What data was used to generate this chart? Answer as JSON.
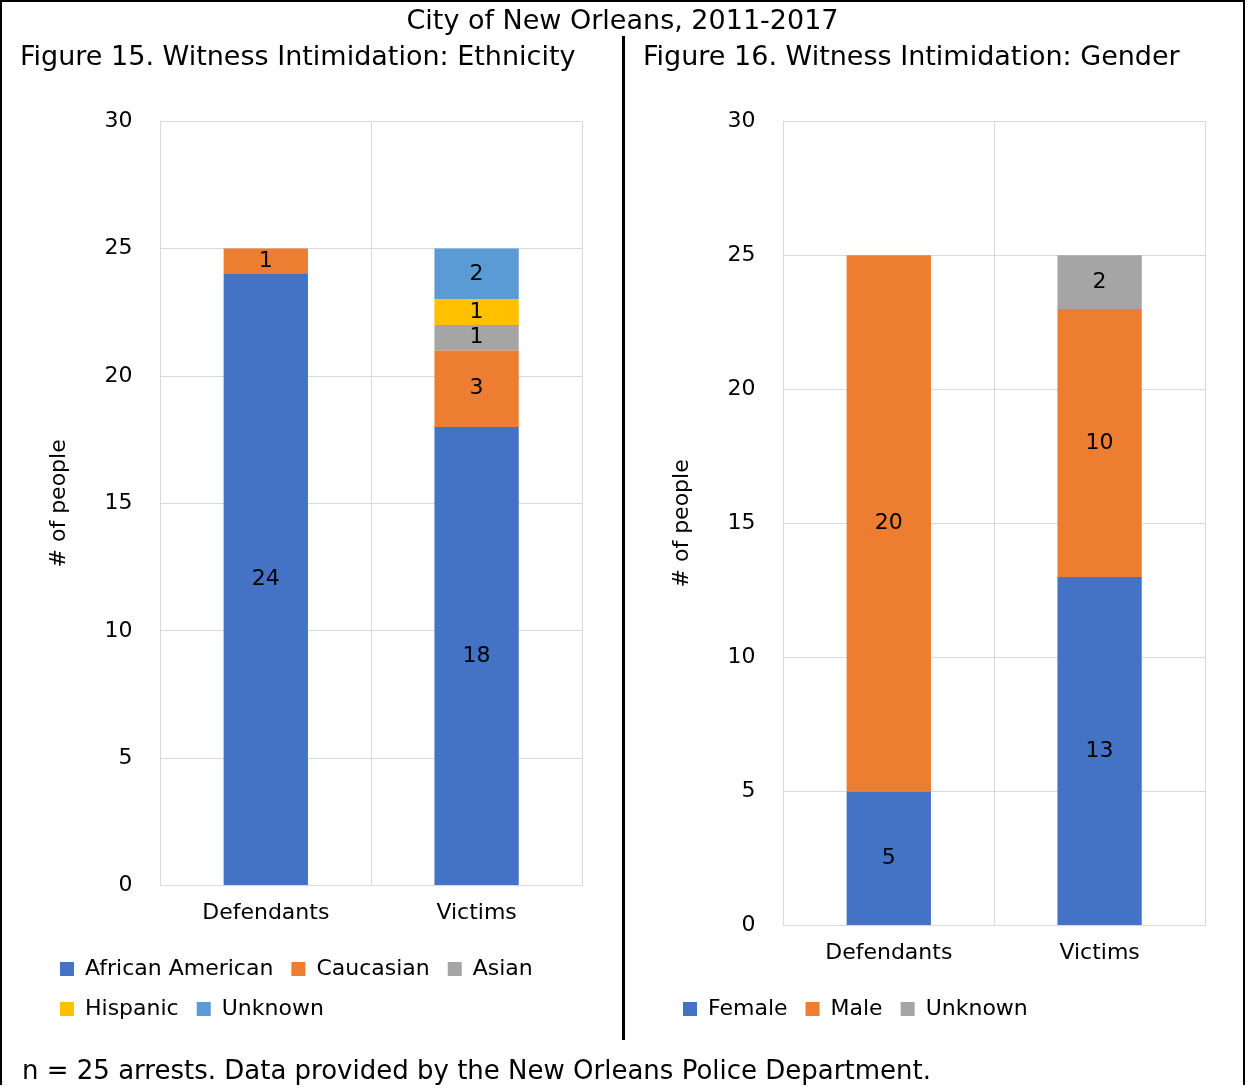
{
  "chart_data": [
    {
      "type": "bar",
      "title": "City of New Orleans, 2011-2017",
      "subtitle": "Figure 15. Witness Intimidation: Ethnicity",
      "ylabel": "# of people",
      "categories": [
        "Defendants",
        "Victims"
      ],
      "stacked": true,
      "ylim": [
        0,
        30
      ],
      "yticks": [
        0,
        5,
        10,
        15,
        20,
        25,
        30
      ],
      "grid": true,
      "legend": "bottom",
      "data_labels": true,
      "series": [
        {
          "name": "African American",
          "color": "#4472c4",
          "values": [
            24,
            18
          ]
        },
        {
          "name": "Caucasian",
          "color": "#ed7d31",
          "values": [
            1,
            3
          ]
        },
        {
          "name": "Asian",
          "color": "#a5a5a5",
          "values": [
            null,
            1
          ]
        },
        {
          "name": "Hispanic",
          "color": "#ffc000",
          "values": [
            null,
            1
          ]
        },
        {
          "name": "Unknown",
          "color": "#5b9bd5",
          "values": [
            null,
            2
          ]
        }
      ]
    },
    {
      "type": "bar",
      "title": "Figure 16. Witness Intimidation: Gender",
      "ylabel": "# of people",
      "categories": [
        "Defendants",
        "Victims"
      ],
      "stacked": true,
      "ylim": [
        0,
        30
      ],
      "yticks": [
        0,
        5,
        10,
        15,
        20,
        25,
        30
      ],
      "grid": true,
      "legend": "bottom",
      "data_labels": true,
      "annotations": [
        "n = 25 arrests. Data provided by the New Orleans Police Department."
      ],
      "series": [
        {
          "name": "Female",
          "color": "#4472c4",
          "values": [
            5,
            13
          ]
        },
        {
          "name": "Male",
          "color": "#ed7d31",
          "values": [
            20,
            10
          ]
        },
        {
          "name": "Unknown",
          "color": "#a5a5a5",
          "values": [
            null,
            2
          ]
        }
      ]
    }
  ]
}
